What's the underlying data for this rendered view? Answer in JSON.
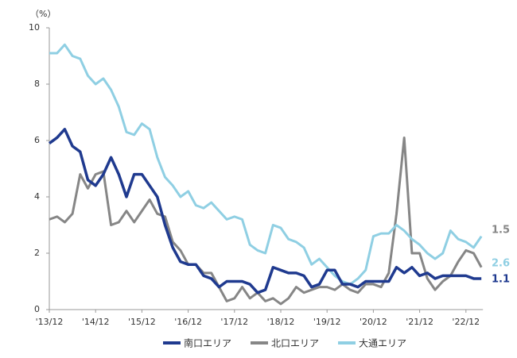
{
  "chart_data": {
    "type": "line",
    "ylabel": "（%）",
    "categories": [
      "'13/12",
      null,
      null,
      null,
      null,
      null,
      "'14/12",
      null,
      null,
      null,
      null,
      null,
      "'15/12",
      null,
      null,
      null,
      null,
      null,
      "'16/12",
      null,
      null,
      null,
      null,
      null,
      "'17/12",
      null,
      null,
      null,
      null,
      null,
      "'18/12",
      null,
      null,
      null,
      null,
      null,
      "'19/12",
      null,
      null,
      null,
      null,
      null,
      "'20/12",
      null,
      null,
      null,
      null,
      null,
      "'21/12",
      null,
      null,
      null,
      null,
      null,
      "'22/12",
      null,
      null
    ],
    "ylim": [
      0,
      10
    ],
    "yticks": [
      0,
      2,
      4,
      6,
      8,
      10
    ],
    "legend": "bottom",
    "series": [
      {
        "name": "南口エリア",
        "color": "#1f3a8f",
        "values": [
          5.9,
          6.1,
          6.4,
          5.8,
          5.6,
          4.6,
          4.4,
          4.8,
          5.4,
          4.8,
          4.0,
          4.8,
          4.8,
          4.4,
          4.0,
          3.0,
          2.2,
          1.7,
          1.6,
          1.6,
          1.2,
          1.1,
          0.8,
          1.0,
          1.0,
          1.0,
          0.9,
          0.6,
          0.7,
          1.5,
          1.4,
          1.3,
          1.3,
          1.2,
          0.8,
          0.9,
          1.4,
          1.4,
          0.9,
          0.9,
          0.8,
          1.0,
          1.0,
          1.0,
          1.0,
          1.5,
          1.3,
          1.5,
          1.2,
          1.3,
          1.1,
          1.2,
          1.2,
          1.2,
          1.2,
          1.1,
          1.1
        ]
      },
      {
        "name": "北口エリア",
        "color": "#868686",
        "values": [
          3.2,
          3.3,
          3.1,
          3.4,
          4.8,
          4.3,
          4.8,
          4.9,
          3.0,
          3.1,
          3.5,
          3.1,
          3.5,
          3.9,
          3.4,
          3.3,
          2.4,
          2.1,
          1.6,
          1.6,
          1.3,
          1.3,
          0.8,
          0.3,
          0.4,
          0.8,
          0.4,
          0.6,
          0.3,
          0.4,
          0.2,
          0.4,
          0.8,
          0.6,
          0.7,
          0.8,
          0.8,
          0.7,
          0.9,
          0.7,
          0.6,
          0.9,
          0.9,
          0.8,
          1.3,
          3.4,
          6.1,
          2.0,
          2.0,
          1.1,
          0.7,
          1.0,
          1.2,
          1.7,
          2.1,
          2.0,
          1.5
        ]
      },
      {
        "name": "大通エリア",
        "color": "#8fcfe3",
        "values": [
          9.1,
          9.1,
          9.4,
          9.0,
          8.9,
          8.3,
          8.0,
          8.2,
          7.8,
          7.2,
          6.3,
          6.2,
          6.6,
          6.4,
          5.4,
          4.7,
          4.4,
          4.0,
          4.2,
          3.7,
          3.6,
          3.8,
          3.5,
          3.2,
          3.3,
          3.2,
          2.3,
          2.1,
          2.0,
          3.0,
          2.9,
          2.5,
          2.4,
          2.2,
          1.6,
          1.8,
          1.5,
          1.2,
          1.0,
          0.9,
          1.1,
          1.4,
          2.6,
          2.7,
          2.7,
          3.0,
          2.8,
          2.5,
          2.3,
          2.0,
          1.8,
          2.0,
          2.8,
          2.5,
          2.4,
          2.2,
          2.6
        ]
      }
    ]
  }
}
